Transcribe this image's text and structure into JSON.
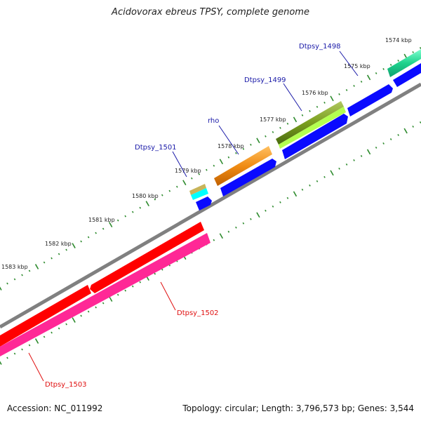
{
  "title": "Acidovorax ebreus TPSY, complete genome",
  "footer": {
    "accession": "Accession: NC_011992",
    "summary": "Topology: circular; Length: 3,796,573 bp; Genes: 3,544"
  },
  "ticks": [
    "1574 kbp",
    "1575 kbp",
    "1576 kbp",
    "1577 kbp",
    "1578 kbp",
    "1579 kbp",
    "1580 kbp",
    "1581 kbp",
    "1582 kbp",
    "1583 kbp"
  ],
  "genes": [
    {
      "name": "Dtpsy_1498",
      "color": "#1ed28c"
    },
    {
      "name": "Dtpsy_1499",
      "color": "#7a9e1e"
    },
    {
      "name": "rho",
      "color": "#f08c14"
    },
    {
      "name": "Dtpsy_1501",
      "color": "#c8b45a"
    },
    {
      "name": "Dtpsy_1502",
      "color": "#ff0000"
    },
    {
      "name": "Dtpsy_1503",
      "color": "#ff2896"
    }
  ],
  "colors": {
    "backbone": "#808080",
    "cds": "#0a0aff",
    "tick": "#2e8b2e",
    "label_forward": "#1a1aa8",
    "label_reverse": "#e01010",
    "cyan_feature": "#00ffff",
    "light_green_feature": "#b4ff50"
  }
}
